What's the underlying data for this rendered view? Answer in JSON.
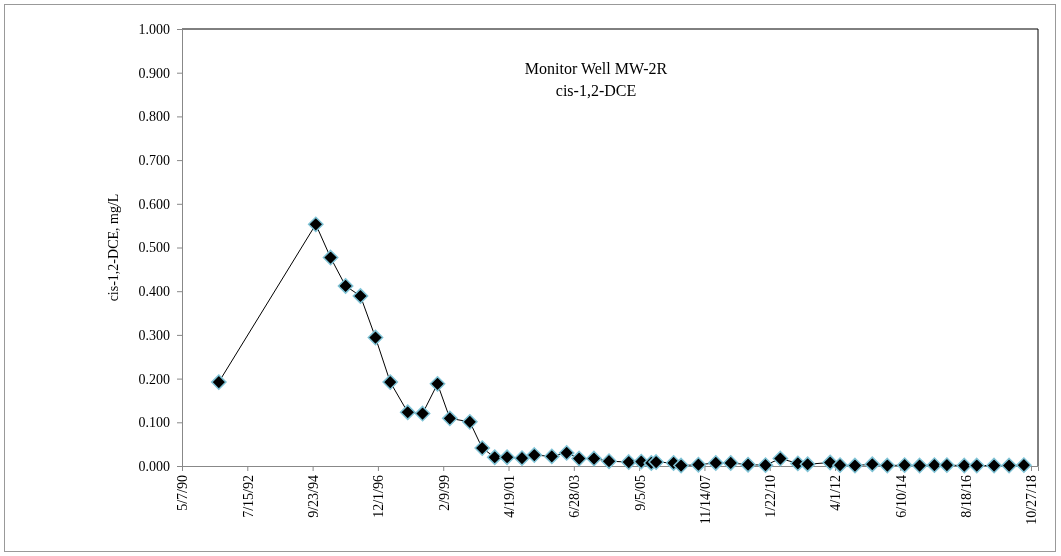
{
  "chart_data": {
    "type": "line",
    "title": "Monitor Well MW-2R",
    "subtitle": "cis-1,2-DCE",
    "ylabel": "cis-1,2-DCE, mg/L",
    "marker": "diamond",
    "line_style": "solid",
    "grid": false,
    "xlim": [
      "1990-05-07",
      "2019-01-21"
    ],
    "xticks": [
      {
        "value": "1990-05-07",
        "label": "5/7/90"
      },
      {
        "value": "1992-07-15",
        "label": "7/15/92"
      },
      {
        "value": "1994-09-23",
        "label": "9/23/94"
      },
      {
        "value": "1996-12-01",
        "label": "12/1/96"
      },
      {
        "value": "1999-02-09",
        "label": "2/9/99"
      },
      {
        "value": "2001-04-19",
        "label": "4/19/01"
      },
      {
        "value": "2003-06-28",
        "label": "6/28/03"
      },
      {
        "value": "2005-09-05",
        "label": "9/5/05"
      },
      {
        "value": "2007-11-14",
        "label": "11/14/07"
      },
      {
        "value": "2010-01-22",
        "label": "1/22/10"
      },
      {
        "value": "2012-04-01",
        "label": "4/1/12"
      },
      {
        "value": "2014-06-10",
        "label": "6/10/14"
      },
      {
        "value": "2016-08-18",
        "label": "8/18/16"
      },
      {
        "value": "2018-10-27",
        "label": "10/27/18"
      }
    ],
    "ylim": [
      0,
      1
    ],
    "yticks": [
      {
        "value": 0,
        "label": "0.000"
      },
      {
        "value": 0.1,
        "label": "0.100"
      },
      {
        "value": 0.2,
        "label": "0.200"
      },
      {
        "value": 0.3,
        "label": "0.300"
      },
      {
        "value": 0.4,
        "label": "0.400"
      },
      {
        "value": 0.5,
        "label": "0.500"
      },
      {
        "value": 0.6,
        "label": "0.600"
      },
      {
        "value": 0.7,
        "label": "0.700"
      },
      {
        "value": 0.8,
        "label": "0.800"
      },
      {
        "value": 0.9,
        "label": "0.900"
      },
      {
        "value": 1,
        "label": "1.000"
      }
    ],
    "x": [
      "1991-08",
      "1994-11",
      "1995-05",
      "1995-11",
      "1996-05",
      "1996-11",
      "1997-05",
      "1997-12",
      "1998-06",
      "1998-12",
      "1999-05",
      "2000-01",
      "2000-06",
      "2000-11",
      "2001-04",
      "2001-10",
      "2002-03",
      "2002-10",
      "2003-04",
      "2003-09",
      "2004-03",
      "2004-09",
      "2005-05",
      "2005-10",
      "2006-02",
      "2006-04",
      "2006-11",
      "2007-02",
      "2007-09",
      "2008-04",
      "2008-10",
      "2009-05",
      "2009-12",
      "2010-06",
      "2011-01",
      "2011-05",
      "2012-02",
      "2012-06",
      "2012-12",
      "2013-07",
      "2014-01",
      "2014-08",
      "2015-02",
      "2015-08",
      "2016-01",
      "2016-08",
      "2017-01",
      "2017-08",
      "2018-02",
      "2018-08"
    ],
    "series": [
      {
        "color": "#000000",
        "values": [
          0.192,
          0.553,
          0.477,
          0.412,
          0.389,
          0.294,
          0.192,
          0.123,
          0.12,
          0.188,
          0.109,
          0.101,
          0.041,
          0.02,
          0.02,
          0.018,
          0.025,
          0.022,
          0.03,
          0.017,
          0.017,
          0.011,
          0.009,
          0.01,
          0.007,
          0.009,
          0.007,
          0.001,
          0.003,
          0.007,
          0.007,
          0.003,
          0.002,
          0.017,
          0.006,
          0.004,
          0.008,
          0.002,
          0.001,
          0.004,
          0.001,
          0.002,
          0.001,
          0.002,
          0.002,
          0.001,
          0.001,
          0.001,
          0.001,
          0.002
        ]
      }
    ]
  }
}
